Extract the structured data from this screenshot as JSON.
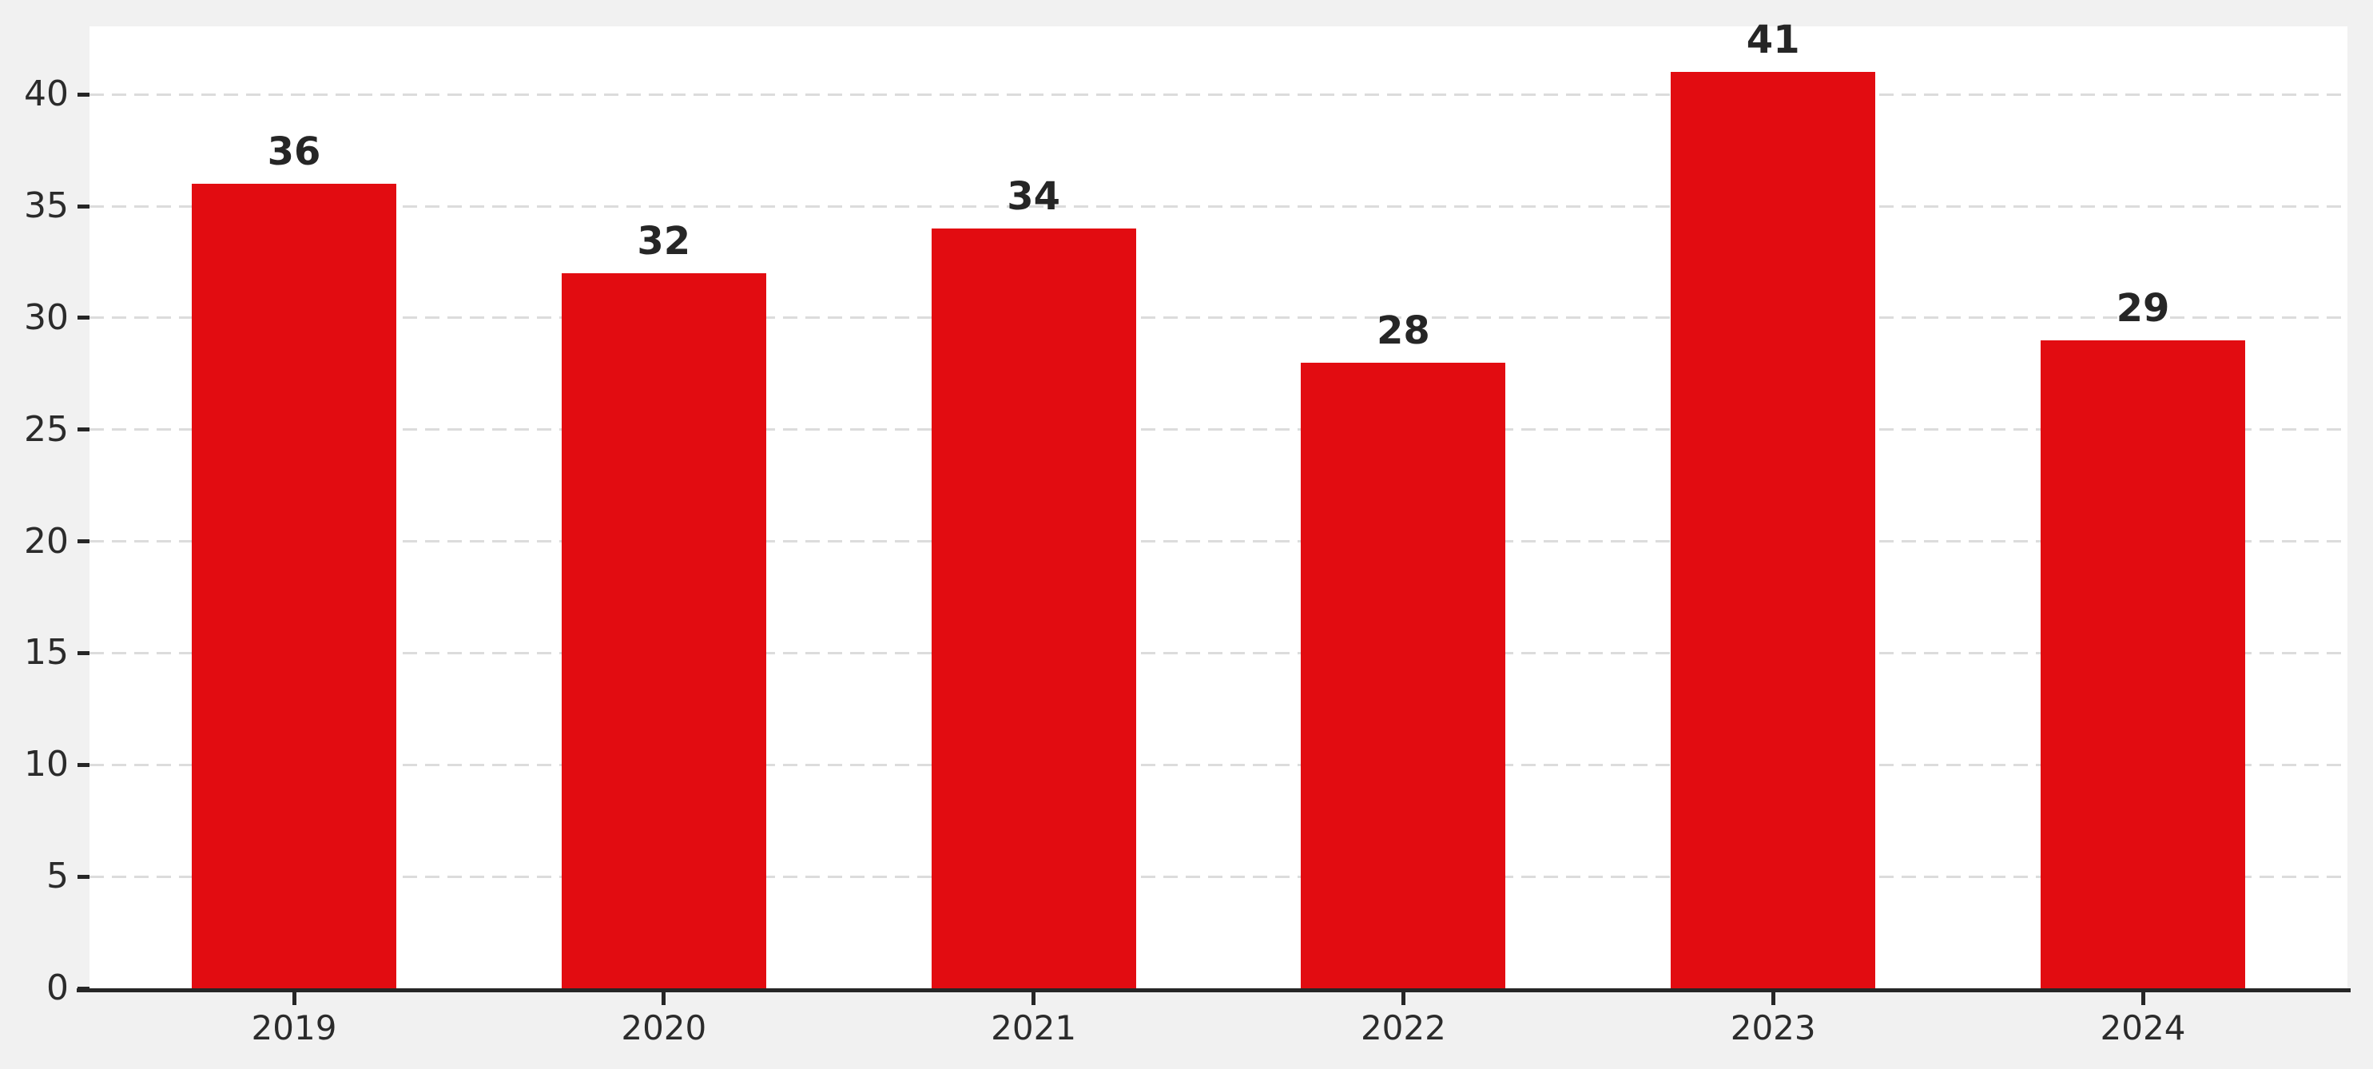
{
  "chart_data": {
    "type": "bar",
    "title": "",
    "xlabel": "",
    "ylabel": "",
    "categories": [
      "2019",
      "2020",
      "2021",
      "2022",
      "2023",
      "2024"
    ],
    "values": [
      36,
      32,
      34,
      28,
      41,
      29
    ],
    "value_labels": [
      "36",
      "32",
      "34",
      "28",
      "41",
      "29"
    ],
    "series": [
      {
        "name": "value",
        "values": [
          36,
          32,
          34,
          28,
          41,
          29
        ]
      }
    ],
    "ylim": [
      0,
      43.05
    ],
    "yticks": [
      0,
      5,
      10,
      15,
      20,
      25,
      30,
      35,
      40
    ],
    "ytick_labels": [
      "0",
      "5",
      "10",
      "15",
      "20",
      "25",
      "30",
      "35",
      "40"
    ],
    "grid": {
      "horizontal": true,
      "vertical": false,
      "style": "dashed"
    },
    "legend": "none",
    "bar_color": "#e20c11"
  },
  "colors": {
    "page_background": "#f1f1f1",
    "plot_background": "#ffffff",
    "bar": "#e20c11",
    "gridline": "#dcdcdc",
    "axis_line": "#262626",
    "tick_mark": "#262626",
    "tick_label_text": "#2b2b2b",
    "value_label_text": "#262626"
  }
}
